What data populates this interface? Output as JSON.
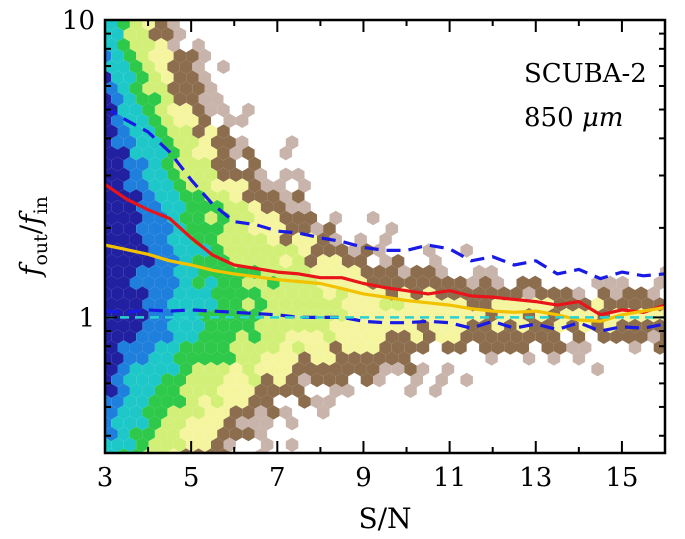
{
  "chart_data": {
    "type": "scatter",
    "subtype": "hexbin-density-with-lines",
    "xlabel": "S/N",
    "ylabel": "f_out / f_in",
    "ylabel_parts": {
      "num_base": "f",
      "num_sub": "out",
      "den_base": "f",
      "den_sub": "in"
    },
    "xlim": [
      3,
      16
    ],
    "ylim": [
      0.35,
      10
    ],
    "yscale": "log",
    "x_ticks": [
      3,
      5,
      7,
      9,
      11,
      13,
      15
    ],
    "x_tick_labels": [
      "3",
      "5",
      "7",
      "9",
      "11",
      "13",
      "15"
    ],
    "y_ticks": [
      1,
      10
    ],
    "y_tick_labels": [
      "1",
      "10"
    ],
    "annotations": [
      "SCUBA-2",
      "850 μm"
    ],
    "annotation_parts": {
      "line1": "SCUBA-2",
      "line2_num": "850",
      "line2_unit": "μm"
    },
    "grid": false,
    "legend": "none",
    "series": [
      {
        "style": "solid",
        "color": "#e8141a",
        "x": [
          3.0,
          3.5,
          4.0,
          4.5,
          5.0,
          5.5,
          6.0,
          6.5,
          7.0,
          7.5,
          8.0,
          8.5,
          9.0,
          9.5,
          10.0,
          10.5,
          11.0,
          11.5,
          12.0,
          12.5,
          13.0,
          13.5,
          14.0,
          14.5,
          15.0,
          15.5,
          16.0
        ],
        "y": [
          2.8,
          2.5,
          2.3,
          2.15,
          1.85,
          1.62,
          1.5,
          1.46,
          1.42,
          1.4,
          1.36,
          1.36,
          1.3,
          1.26,
          1.23,
          1.2,
          1.23,
          1.18,
          1.17,
          1.15,
          1.13,
          1.1,
          1.13,
          1.02,
          1.06,
          1.04,
          1.1
        ]
      },
      {
        "style": "solid",
        "color": "#f2c200",
        "x": [
          3.0,
          3.5,
          4.0,
          4.5,
          5.0,
          5.5,
          6.0,
          6.5,
          7.0,
          7.5,
          8.0,
          8.5,
          9.0,
          9.5,
          10.0,
          10.5,
          11.0,
          11.5,
          12.0,
          12.5,
          13.0,
          13.5,
          14.0,
          14.5,
          15.0,
          15.5,
          16.0
        ],
        "y": [
          1.75,
          1.69,
          1.63,
          1.55,
          1.5,
          1.44,
          1.4,
          1.37,
          1.34,
          1.32,
          1.3,
          1.25,
          1.2,
          1.17,
          1.14,
          1.12,
          1.1,
          1.07,
          1.05,
          1.04,
          1.05,
          1.02,
          0.98,
          0.97,
          1.02,
          1.05,
          1.08
        ]
      },
      {
        "style": "dashed",
        "color": "#1a1ae6",
        "x": [
          3.0,
          3.5,
          4.0,
          4.5,
          5.0,
          5.5,
          6.0,
          6.5,
          7.0,
          7.5,
          8.0,
          8.5,
          9.0,
          9.5,
          10.0,
          10.5,
          11.0,
          11.5,
          12.0,
          12.5,
          13.0,
          13.5,
          14.0,
          14.5,
          15.0,
          15.5,
          16.0
        ],
        "y": [
          5.1,
          4.6,
          4.2,
          3.6,
          2.9,
          2.4,
          2.1,
          2.05,
          1.95,
          1.92,
          1.85,
          1.8,
          1.72,
          1.68,
          1.68,
          1.75,
          1.7,
          1.55,
          1.6,
          1.5,
          1.55,
          1.4,
          1.45,
          1.35,
          1.42,
          1.38,
          1.4
        ]
      },
      {
        "style": "dashed",
        "color": "#1a1ae6",
        "x": [
          3.0,
          3.5,
          4.0,
          4.5,
          5.0,
          5.5,
          6.0,
          6.5,
          7.0,
          7.5,
          8.0,
          8.5,
          9.0,
          9.5,
          10.0,
          10.5,
          11.0,
          11.5,
          12.0,
          12.5,
          13.0,
          13.5,
          14.0,
          14.5,
          15.0,
          15.5,
          16.0
        ],
        "y": [
          1.05,
          1.04,
          1.06,
          1.05,
          1.06,
          1.05,
          1.04,
          1.03,
          1.02,
          1.0,
          1.0,
          1.0,
          0.97,
          0.96,
          0.96,
          0.97,
          0.96,
          0.92,
          0.97,
          0.92,
          0.95,
          0.91,
          0.96,
          0.9,
          0.93,
          0.92,
          0.95
        ]
      },
      {
        "style": "dashed",
        "color": "#2bd1d1",
        "x": [
          3.0,
          16.0
        ],
        "y": [
          1.0,
          1.0
        ]
      }
    ],
    "density_colormap": [
      "#2020a0",
      "#1e7fdc",
      "#1ec8c8",
      "#2ec84a",
      "#d2f078",
      "#f5f5a0",
      "#8c6e4e",
      "#c8b4aa"
    ]
  }
}
